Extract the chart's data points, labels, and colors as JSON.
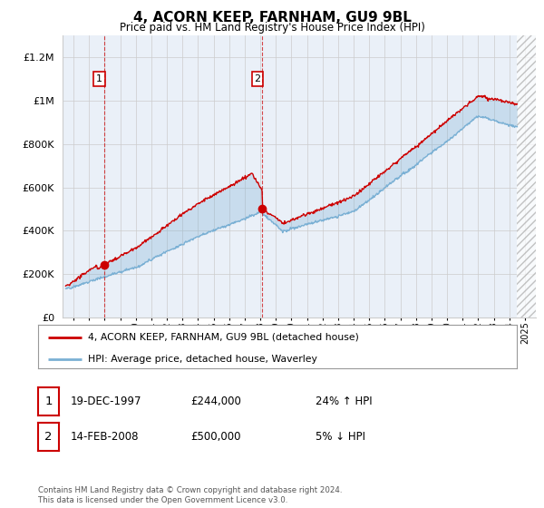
{
  "title": "4, ACORN KEEP, FARNHAM, GU9 9BL",
  "subtitle": "Price paid vs. HM Land Registry's House Price Index (HPI)",
  "legend_line1": "4, ACORN KEEP, FARNHAM, GU9 9BL (detached house)",
  "legend_line2": "HPI: Average price, detached house, Waverley",
  "annotation1": {
    "num": "1",
    "date": "19-DEC-1997",
    "price": "£244,000",
    "pct": "24% ↑ HPI"
  },
  "annotation2": {
    "num": "2",
    "date": "14-FEB-2008",
    "price": "£500,000",
    "pct": "5% ↓ HPI"
  },
  "footer": "Contains HM Land Registry data © Crown copyright and database right 2024.\nThis data is licensed under the Open Government Licence v3.0.",
  "ylim": [
    0,
    1300000
  ],
  "yticks": [
    0,
    200000,
    400000,
    600000,
    800000,
    1000000,
    1200000
  ],
  "xlim_start": 1995.3,
  "xlim_end": 2025.7,
  "sale1_x": 1997.97,
  "sale1_y": 244000,
  "sale2_x": 2008.12,
  "sale2_y": 500000,
  "vline1_x": 1997.97,
  "vline2_x": 2008.12,
  "bg_color": "#eaf0f8",
  "red_color": "#cc0000",
  "blue_color": "#7ab0d4",
  "grid_color": "#cccccc",
  "hatch_start": 2024.5
}
